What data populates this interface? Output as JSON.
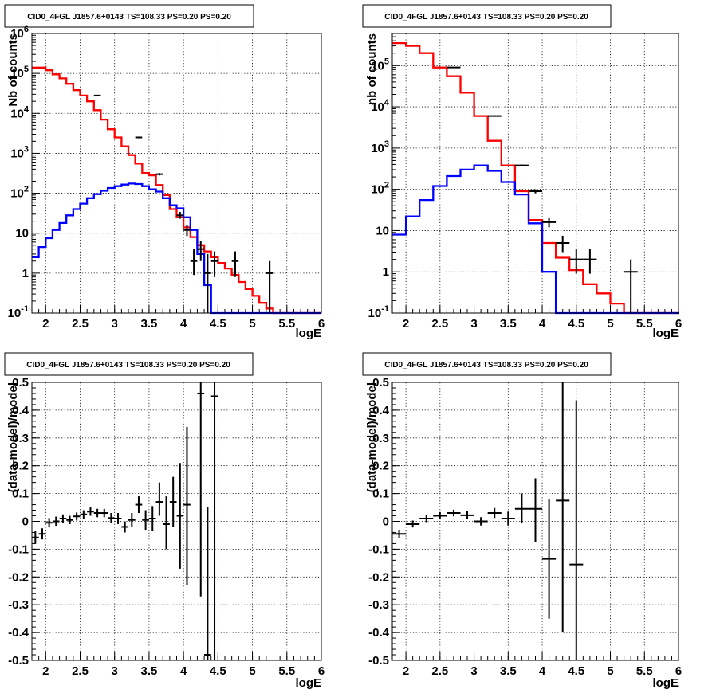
{
  "panels": [
    {
      "title": "CID0_4FGL J1857.6+0143 TS=108.33 PS=0.20 PS=0.20",
      "chart_data": {
        "type": "line",
        "xlabel": "logE",
        "ylabel": "Nb of counts",
        "xlim": [
          1.8,
          6
        ],
        "ylim": [
          0.1,
          1000000
        ],
        "log_y": true,
        "grid": true,
        "x_ticks": [
          "2",
          "2.5",
          "3",
          "3.5",
          "4",
          "4.5",
          "5",
          "5.5",
          "6"
        ],
        "y_ticks": [
          "10^-1",
          "1",
          "10",
          "10^2",
          "10^3",
          "10^4",
          "10^5",
          "10^6"
        ],
        "hist_x_edges": [
          1.8,
          1.9,
          2.0,
          2.1,
          2.2,
          2.3,
          2.4,
          2.5,
          2.6,
          2.7,
          2.8,
          2.9,
          3.0,
          3.1,
          3.2,
          3.3,
          3.4,
          3.5,
          3.6,
          3.7,
          3.8,
          3.9,
          4.0,
          4.1,
          4.2,
          4.3,
          4.4,
          4.5,
          4.6,
          4.7,
          4.8,
          4.9,
          5.0,
          5.1,
          5.2,
          5.3,
          5.4,
          5.5,
          5.6,
          5.7,
          5.8,
          5.9,
          6.0
        ],
        "series": [
          {
            "color": "#ff0000",
            "kind": "histogram",
            "values": [
              140000,
              140000,
              120000,
              95000,
              75000,
              55000,
              38000,
              28000,
              20000,
              12000,
              7000,
              4000,
              2500,
              1500,
              900,
              550,
              320,
              280,
              160,
              90,
              40,
              25,
              14,
              8,
              5,
              3.5,
              2.5,
              1.8,
              1.3,
              0.9,
              0.6,
              0.4,
              0.27,
              0.18,
              0.13,
              0.1,
              0.1,
              0.1,
              0.1,
              0.1,
              0.1,
              0.1
            ]
          },
          {
            "color": "#0000ff",
            "kind": "histogram",
            "values": [
              2.5,
              4.5,
              7.5,
              12,
              18,
              28,
              40,
              55,
              75,
              95,
              115,
              135,
              150,
              165,
              175,
              170,
              150,
              125,
              110,
              75,
              50,
              42,
              25,
              12,
              3,
              0.5,
              0.08,
              0.08,
              0.08,
              0.08,
              0.08,
              0.08,
              0.08,
              0.08,
              0.08,
              0.08,
              0.08,
              0.08,
              0.08,
              0.08,
              0.08,
              0.08
            ]
          },
          {
            "color": "#000000",
            "kind": "errorbars",
            "points": [
              {
                "x": 2.75,
                "y": 28000,
                "xerr": 0.05,
                "ylo": 27000,
                "yhi": 29000
              },
              {
                "x": 3.35,
                "y": 2500,
                "xerr": 0.05,
                "ylo": 2400,
                "yhi": 2600
              },
              {
                "x": 3.65,
                "y": 300,
                "xerr": 0.05,
                "ylo": 280,
                "yhi": 320
              },
              {
                "x": 3.95,
                "y": 28,
                "xerr": 0.05,
                "ylo": 23,
                "yhi": 34
              },
              {
                "x": 4.05,
                "y": 12,
                "xerr": 0.05,
                "ylo": 8.5,
                "yhi": 16
              },
              {
                "x": 4.15,
                "y": 2,
                "xerr": 0.05,
                "ylo": 0.9,
                "yhi": 4
              },
              {
                "x": 4.25,
                "y": 4,
                "xerr": 0.05,
                "ylo": 2,
                "yhi": 6.5
              },
              {
                "x": 4.35,
                "y": 1,
                "xerr": 0.05,
                "ylo": 0.1,
                "yhi": 3
              },
              {
                "x": 4.45,
                "y": 2,
                "xerr": 0.05,
                "ylo": 0.8,
                "yhi": 3.5
              },
              {
                "x": 4.75,
                "y": 2,
                "xerr": 0.05,
                "ylo": 0.8,
                "yhi": 3.5
              },
              {
                "x": 5.25,
                "y": 1,
                "xerr": 0.05,
                "ylo": 0.1,
                "yhi": 2
              }
            ]
          }
        ]
      }
    },
    {
      "title": "CID0_4FGL J1857.6+0143 TS=108.33 PS=0.20 PS=0.20",
      "chart_data": {
        "type": "line",
        "xlabel": "logE",
        "ylabel": "nb of counts",
        "xlim": [
          1.8,
          6
        ],
        "ylim": [
          0.1,
          600000
        ],
        "log_y": true,
        "grid": true,
        "x_ticks": [
          "2",
          "2.5",
          "3",
          "3.5",
          "4",
          "4.5",
          "5",
          "5.5",
          "6"
        ],
        "y_ticks": [
          "10^-1",
          "1",
          "10",
          "10^2",
          "10^3",
          "10^4",
          "10^5"
        ],
        "hist_x_edges": [
          1.8,
          2.0,
          2.2,
          2.4,
          2.6,
          2.8,
          3.0,
          3.2,
          3.4,
          3.6,
          3.8,
          4.0,
          4.2,
          4.4,
          4.6,
          4.8,
          5.0,
          5.2,
          5.4,
          5.6,
          5.8,
          6.0
        ],
        "series": [
          {
            "color": "#ff0000",
            "kind": "histogram",
            "values": [
              350000,
              300000,
              200000,
              90000,
              55000,
              22000,
              6000,
              1500,
              380,
              90,
              18,
              5,
              2.2,
              1.1,
              0.5,
              0.3,
              0.17,
              0.1,
              0.1,
              0.1,
              0.1
            ]
          },
          {
            "color": "#0000ff",
            "kind": "histogram",
            "values": [
              8,
              22,
              55,
              120,
              210,
              300,
              380,
              280,
              150,
              75,
              15,
              1,
              0.08,
              0.08,
              0.08,
              0.08,
              0.08,
              0.08,
              0.08,
              0.08,
              0.08
            ]
          },
          {
            "color": "#000000",
            "kind": "errorbars",
            "points": [
              {
                "x": 2.7,
                "y": 90000,
                "xerr": 0.1,
                "ylo": 88000,
                "yhi": 92000
              },
              {
                "x": 3.3,
                "y": 6000,
                "xerr": 0.1,
                "ylo": 5800,
                "yhi": 6200
              },
              {
                "x": 3.7,
                "y": 380,
                "xerr": 0.1,
                "ylo": 360,
                "yhi": 400
              },
              {
                "x": 3.9,
                "y": 90,
                "xerr": 0.1,
                "ylo": 80,
                "yhi": 100
              },
              {
                "x": 4.1,
                "y": 16,
                "xerr": 0.1,
                "ylo": 12,
                "yhi": 20
              },
              {
                "x": 4.3,
                "y": 5,
                "xerr": 0.1,
                "ylo": 3,
                "yhi": 7.5
              },
              {
                "x": 4.5,
                "y": 2,
                "xerr": 0.1,
                "ylo": 0.9,
                "yhi": 3.5
              },
              {
                "x": 4.7,
                "y": 2,
                "xerr": 0.1,
                "ylo": 0.9,
                "yhi": 3.5
              },
              {
                "x": 5.3,
                "y": 1,
                "xerr": 0.1,
                "ylo": 0.1,
                "yhi": 2
              }
            ]
          }
        ]
      }
    },
    {
      "title": "CID0_4FGL J1857.6+0143 TS=108.33 PS=0.20 PS=0.20",
      "chart_data": {
        "type": "scatter",
        "xlabel": "logE",
        "ylabel": "(data-model)/model",
        "xlim": [
          1.8,
          6
        ],
        "ylim": [
          -0.5,
          0.5
        ],
        "log_y": false,
        "grid": true,
        "x_ticks": [
          "2",
          "2.5",
          "3",
          "3.5",
          "4",
          "4.5",
          "5",
          "5.5",
          "6"
        ],
        "y_ticks": [
          "-0.5",
          "-0.4",
          "-0.3",
          "-0.2",
          "-0.1",
          "0",
          "0.1",
          "0.2",
          "0.3",
          "0.4",
          "0.5"
        ],
        "series": [
          {
            "color": "#000000",
            "kind": "errorbars",
            "points": [
              {
                "x": 1.85,
                "y": -0.058,
                "xerr": 0.05,
                "ylo": -0.08,
                "yhi": -0.035
              },
              {
                "x": 1.95,
                "y": -0.045,
                "xerr": 0.05,
                "ylo": -0.065,
                "yhi": -0.025
              },
              {
                "x": 2.05,
                "y": -0.005,
                "xerr": 0.05,
                "ylo": -0.022,
                "yhi": 0.012
              },
              {
                "x": 2.15,
                "y": 0.0,
                "xerr": 0.05,
                "ylo": -0.016,
                "yhi": 0.017
              },
              {
                "x": 2.25,
                "y": 0.01,
                "xerr": 0.05,
                "ylo": -0.005,
                "yhi": 0.025
              },
              {
                "x": 2.35,
                "y": 0.005,
                "xerr": 0.05,
                "ylo": -0.01,
                "yhi": 0.02
              },
              {
                "x": 2.45,
                "y": 0.018,
                "xerr": 0.05,
                "ylo": 0.003,
                "yhi": 0.032
              },
              {
                "x": 2.55,
                "y": 0.025,
                "xerr": 0.05,
                "ylo": 0.01,
                "yhi": 0.04
              },
              {
                "x": 2.65,
                "y": 0.035,
                "xerr": 0.05,
                "ylo": 0.02,
                "yhi": 0.05
              },
              {
                "x": 2.75,
                "y": 0.03,
                "xerr": 0.05,
                "ylo": 0.015,
                "yhi": 0.045
              },
              {
                "x": 2.85,
                "y": 0.03,
                "xerr": 0.05,
                "ylo": 0.015,
                "yhi": 0.045
              },
              {
                "x": 2.95,
                "y": 0.012,
                "xerr": 0.05,
                "ylo": -0.005,
                "yhi": 0.03
              },
              {
                "x": 3.05,
                "y": 0.01,
                "xerr": 0.05,
                "ylo": -0.01,
                "yhi": 0.03
              },
              {
                "x": 3.15,
                "y": -0.02,
                "xerr": 0.05,
                "ylo": -0.04,
                "yhi": 0.0
              },
              {
                "x": 3.25,
                "y": 0.005,
                "xerr": 0.05,
                "ylo": -0.02,
                "yhi": 0.03
              },
              {
                "x": 3.35,
                "y": 0.06,
                "xerr": 0.05,
                "ylo": 0.03,
                "yhi": 0.09
              },
              {
                "x": 3.45,
                "y": 0.005,
                "xerr": 0.05,
                "ylo": -0.03,
                "yhi": 0.04
              },
              {
                "x": 3.55,
                "y": 0.01,
                "xerr": 0.05,
                "ylo": -0.035,
                "yhi": 0.055
              },
              {
                "x": 3.65,
                "y": 0.07,
                "xerr": 0.05,
                "ylo": 0.02,
                "yhi": 0.14
              },
              {
                "x": 3.75,
                "y": -0.01,
                "xerr": 0.05,
                "ylo": -0.1,
                "yhi": 0.09
              },
              {
                "x": 3.85,
                "y": 0.07,
                "xerr": 0.05,
                "ylo": -0.02,
                "yhi": 0.16
              },
              {
                "x": 3.95,
                "y": 0.02,
                "xerr": 0.05,
                "ylo": -0.17,
                "yhi": 0.21
              },
              {
                "x": 4.05,
                "y": 0.06,
                "xerr": 0.05,
                "ylo": -0.23,
                "yhi": 0.34
              },
              {
                "x": 4.25,
                "y": 0.46,
                "xerr": 0.05,
                "ylo": -0.27,
                "yhi": 0.5
              },
              {
                "x": 4.35,
                "y": -0.48,
                "xerr": 0.05,
                "ylo": -0.5,
                "yhi": 0.05
              },
              {
                "x": 4.45,
                "y": 0.45,
                "xerr": 0.05,
                "ylo": -0.5,
                "yhi": 0.5
              }
            ]
          }
        ]
      }
    },
    {
      "title": "CID0_4FGL J1857.6+0143 TS=108.33 PS=0.20 PS=0.20",
      "chart_data": {
        "type": "scatter",
        "xlabel": "logE",
        "ylabel": "(data-model)/model",
        "xlim": [
          1.8,
          6
        ],
        "ylim": [
          -0.5,
          0.5
        ],
        "log_y": false,
        "grid": true,
        "x_ticks": [
          "2",
          "2.5",
          "3",
          "3.5",
          "4",
          "4.5",
          "5",
          "5.5",
          "6"
        ],
        "y_ticks": [
          "-0.5",
          "-0.4",
          "-0.3",
          "-0.2",
          "-0.1",
          "0",
          "0.1",
          "0.2",
          "0.3",
          "0.4",
          "0.5"
        ],
        "series": [
          {
            "color": "#000000",
            "kind": "errorbars",
            "points": [
              {
                "x": 1.9,
                "y": -0.045,
                "xerr": 0.1,
                "ylo": -0.06,
                "yhi": -0.03
              },
              {
                "x": 2.1,
                "y": -0.01,
                "xerr": 0.1,
                "ylo": -0.022,
                "yhi": 0.003
              },
              {
                "x": 2.3,
                "y": 0.01,
                "xerr": 0.1,
                "ylo": -0.003,
                "yhi": 0.023
              },
              {
                "x": 2.5,
                "y": 0.02,
                "xerr": 0.1,
                "ylo": 0.007,
                "yhi": 0.033
              },
              {
                "x": 2.7,
                "y": 0.03,
                "xerr": 0.1,
                "ylo": 0.018,
                "yhi": 0.042
              },
              {
                "x": 2.9,
                "y": 0.022,
                "xerr": 0.1,
                "ylo": 0.008,
                "yhi": 0.036
              },
              {
                "x": 3.1,
                "y": 0.0,
                "xerr": 0.1,
                "ylo": -0.015,
                "yhi": 0.015
              },
              {
                "x": 3.3,
                "y": 0.03,
                "xerr": 0.1,
                "ylo": 0.012,
                "yhi": 0.048
              },
              {
                "x": 3.5,
                "y": 0.01,
                "xerr": 0.1,
                "ylo": -0.015,
                "yhi": 0.035
              },
              {
                "x": 3.7,
                "y": 0.045,
                "xerr": 0.1,
                "ylo": -0.005,
                "yhi": 0.1
              },
              {
                "x": 3.9,
                "y": 0.045,
                "xerr": 0.1,
                "ylo": -0.075,
                "yhi": 0.155
              },
              {
                "x": 4.1,
                "y": -0.135,
                "xerr": 0.1,
                "ylo": -0.35,
                "yhi": 0.08
              },
              {
                "x": 4.3,
                "y": 0.075,
                "xerr": 0.1,
                "ylo": -0.4,
                "yhi": 0.5
              },
              {
                "x": 4.5,
                "y": -0.155,
                "xerr": 0.1,
                "ylo": -0.5,
                "yhi": 0.435
              }
            ]
          }
        ]
      }
    }
  ]
}
